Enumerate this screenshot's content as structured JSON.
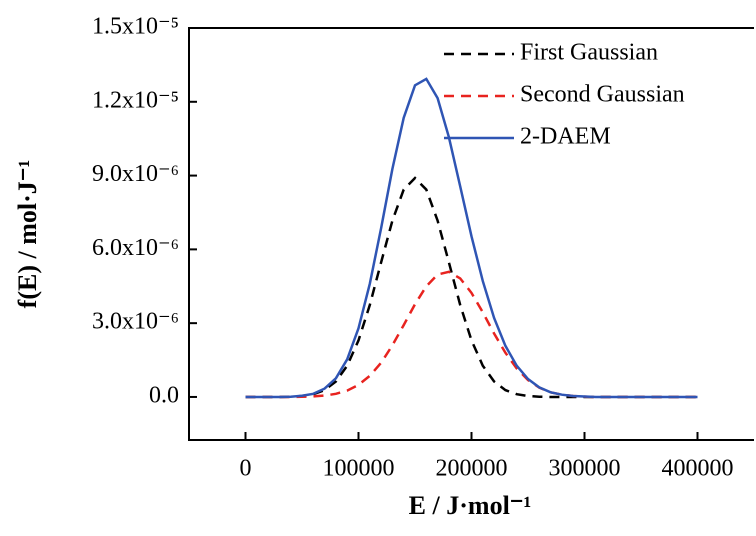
{
  "chart_data": {
    "type": "line",
    "xlabel": "E / J·mol⁻¹",
    "ylabel": "f(E) / mol·J⁻¹",
    "x": [
      0,
      10000,
      20000,
      30000,
      40000,
      50000,
      60000,
      70000,
      80000,
      90000,
      100000,
      110000,
      120000,
      130000,
      140000,
      150000,
      160000,
      170000,
      180000,
      190000,
      200000,
      210000,
      220000,
      230000,
      240000,
      250000,
      260000,
      270000,
      280000,
      290000,
      300000,
      310000,
      320000,
      330000,
      340000,
      350000,
      360000,
      370000,
      380000,
      390000,
      400000
    ],
    "series": [
      {
        "name": "First Gaussian",
        "color": "#000000",
        "dash": true,
        "values": [
          0,
          0,
          0,
          0,
          1e-08,
          4e-08,
          1.1e-07,
          2.8e-07,
          6.3e-07,
          1.27e-06,
          2.3e-06,
          3.74e-06,
          5.47e-06,
          7.17e-06,
          8.43e-06,
          8.9e-06,
          8.43e-06,
          7.17e-06,
          5.47e-06,
          3.74e-06,
          2.3e-06,
          1.27e-06,
          6.3e-07,
          2.8e-07,
          1.1e-07,
          4e-08,
          1e-08,
          0,
          0,
          0,
          0,
          0,
          0,
          0,
          0,
          0,
          0,
          0,
          0,
          0,
          0
        ]
      },
      {
        "name": "Second Gaussian",
        "color": "#e8231f",
        "dash": true,
        "values": [
          0,
          0,
          0,
          0,
          0,
          9e-09,
          2.4e-08,
          5.7e-08,
          1.3e-07,
          2.6e-07,
          4.9e-07,
          8.6e-07,
          1.39e-06,
          2.1e-06,
          2.92e-06,
          3.77e-06,
          4.5e-06,
          4.98e-06,
          5.09e-06,
          4.82e-06,
          4.23e-06,
          3.44e-06,
          2.58e-06,
          1.8e-06,
          1.16e-06,
          6.9e-07,
          3.8e-07,
          1.9e-07,
          9e-08,
          4e-08,
          1.6e-08,
          0,
          0,
          0,
          0,
          0,
          0,
          0,
          0,
          0,
          0
        ]
      },
      {
        "name": "2-DAEM",
        "color": "#2f55b4",
        "dash": false,
        "values": [
          0,
          0,
          0,
          0,
          1e-08,
          5e-08,
          1.3e-07,
          3.4e-07,
          7.6e-07,
          1.53e-06,
          2.79e-06,
          4.6e-06,
          6.86e-06,
          9.27e-06,
          1.135e-05,
          1.267e-05,
          1.293e-05,
          1.215e-05,
          1.056e-05,
          8.56e-06,
          6.53e-06,
          4.71e-06,
          3.21e-06,
          2.08e-06,
          1.27e-06,
          7.3e-07,
          3.9e-07,
          1.9e-07,
          9e-08,
          4e-08,
          2e-08,
          0,
          0,
          0,
          0,
          0,
          0,
          0,
          0,
          0,
          0
        ]
      }
    ],
    "xlim": [
      -50000,
      450000
    ],
    "xticks": [
      0,
      100000,
      200000,
      300000,
      400000
    ],
    "ylim": [
      -1.75e-06,
      1.5e-05
    ],
    "yticks": [
      {
        "value": 0,
        "label": "0.0"
      },
      {
        "value": 3e-06,
        "label": "3.0x10⁻⁶"
      },
      {
        "value": 6e-06,
        "label": "6.0x10⁻⁶"
      },
      {
        "value": 9e-06,
        "label": "9.0x10⁻⁶"
      },
      {
        "value": 1.2e-05,
        "label": "1.2x10⁻⁵"
      },
      {
        "value": 1.5e-05,
        "label": "1.5x10⁻⁵"
      }
    ],
    "legend": "upper right"
  }
}
